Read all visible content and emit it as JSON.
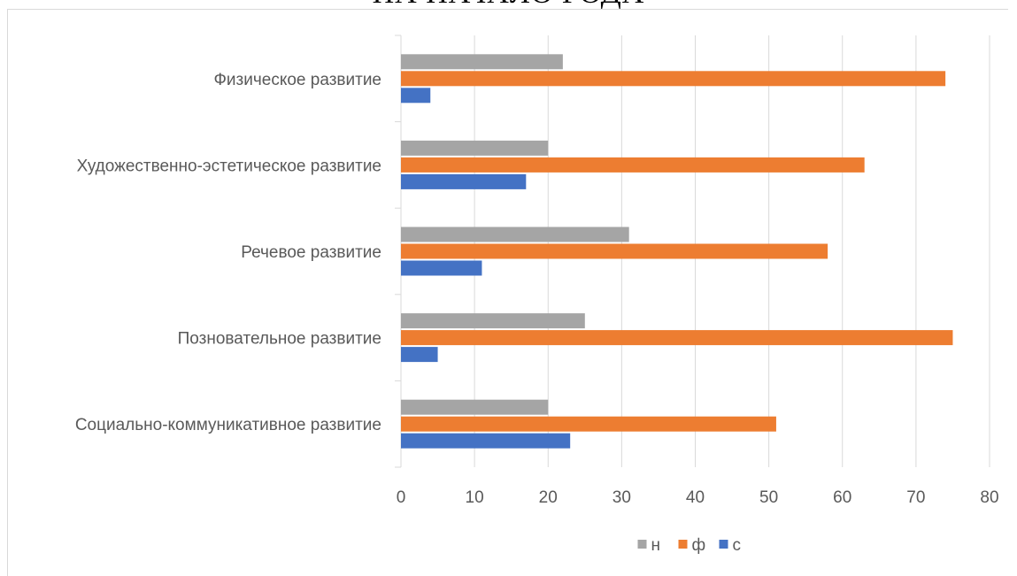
{
  "chart_data": {
    "type": "bar",
    "orientation": "horizontal",
    "title": "НА НАЧАЛО ГОДА",
    "categories": [
      "Социально-коммуникативное развитие",
      "Позновательное развитие",
      "Речевое развитие",
      "Художественно-эстетическое развитие",
      "Физическое развитие"
    ],
    "series": [
      {
        "name": "н",
        "color": "#a5a5a5",
        "values": [
          20,
          25,
          31,
          20,
          22
        ]
      },
      {
        "name": "ф",
        "color": "#ed7d31",
        "values": [
          51,
          75,
          58,
          63,
          74
        ]
      },
      {
        "name": "с",
        "color": "#4472c4",
        "values": [
          23,
          5,
          11,
          17,
          4
        ]
      }
    ],
    "xlim": [
      0,
      80
    ],
    "xticks": [
      0,
      10,
      20,
      30,
      40,
      50,
      60,
      70,
      80
    ],
    "grid": true,
    "legend_position": "bottom"
  }
}
